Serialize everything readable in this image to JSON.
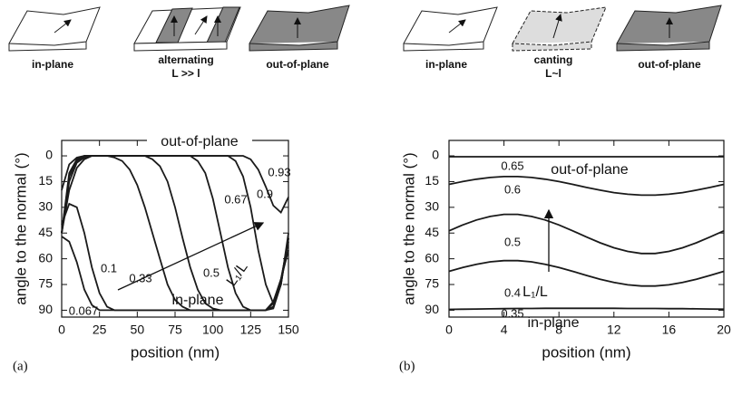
{
  "illustrations": {
    "left": [
      "in-plane",
      "alternating",
      "L >> l",
      "out-of-plane"
    ],
    "right": [
      "in-plane",
      "canting",
      "L~l",
      "out-of-plane"
    ]
  },
  "chart_data": [
    {
      "type": "line",
      "panel_label": "(a)",
      "xlabel": "position (nm)",
      "ylabel": "angle to the normal (°)",
      "color": "#1a1a1a",
      "y_inverted": true,
      "annotations": [
        "out-of-plane",
        "in-plane",
        "L₁/L"
      ],
      "xlim": [
        0,
        150
      ],
      "xticks": [
        0,
        25,
        50,
        75,
        100,
        125,
        150
      ],
      "ylim": [
        -9,
        94
      ],
      "yticks": [
        0,
        15,
        30,
        45,
        60,
        75,
        90
      ],
      "x": [
        0,
        5,
        10,
        15,
        20,
        25,
        30,
        35,
        40,
        45,
        50,
        55,
        60,
        65,
        70,
        75,
        80,
        85,
        90,
        95,
        100,
        105,
        110,
        115,
        120,
        125,
        130,
        135,
        140,
        145,
        150
      ],
      "series": [
        {
          "name": "0.067",
          "values": [
            47,
            50,
            62,
            78,
            87,
            90,
            90,
            90,
            90,
            90,
            90,
            90,
            90,
            90,
            90,
            90,
            90,
            90,
            90,
            90,
            90,
            90,
            90,
            90,
            90,
            90,
            90,
            90,
            85,
            72,
            55
          ]
        },
        {
          "name": "0.1",
          "values": [
            40,
            28,
            30,
            45,
            65,
            80,
            88,
            90,
            90,
            90,
            90,
            90,
            90,
            90,
            90,
            90,
            90,
            90,
            90,
            90,
            90,
            90,
            90,
            90,
            90,
            90,
            90,
            90,
            86,
            72,
            50
          ]
        },
        {
          "name": "0.33",
          "values": [
            45,
            20,
            7,
            2,
            0,
            0,
            0,
            1,
            3,
            8,
            17,
            30,
            45,
            60,
            75,
            84,
            88,
            90,
            90,
            90,
            90,
            90,
            90,
            90,
            90,
            90,
            90,
            90,
            88,
            75,
            48
          ]
        },
        {
          "name": "0.5",
          "values": [
            45,
            15,
            4,
            1,
            0,
            0,
            0,
            0,
            0,
            0,
            0,
            0,
            2,
            6,
            15,
            30,
            48,
            65,
            78,
            86,
            89,
            90,
            90,
            90,
            90,
            90,
            90,
            90,
            89,
            75,
            48
          ]
        },
        {
          "name": "0.67",
          "values": [
            45,
            12,
            3,
            0,
            0,
            0,
            0,
            0,
            0,
            0,
            0,
            0,
            0,
            0,
            0,
            0,
            0,
            0,
            3,
            10,
            25,
            45,
            65,
            80,
            88,
            90,
            90,
            90,
            88,
            73,
            48
          ]
        },
        {
          "name": "0.9",
          "values": [
            45,
            10,
            2,
            0,
            0,
            0,
            0,
            0,
            0,
            0,
            0,
            0,
            0,
            0,
            0,
            0,
            0,
            0,
            0,
            0,
            0,
            0,
            0,
            3,
            12,
            30,
            55,
            75,
            86,
            75,
            45
          ]
        },
        {
          "name": "0.93",
          "values": [
            20,
            5,
            1,
            0,
            0,
            0,
            0,
            0,
            0,
            0,
            0,
            0,
            0,
            0,
            0,
            0,
            0,
            0,
            0,
            0,
            0,
            0,
            0,
            0,
            0,
            2,
            8,
            18,
            29,
            33,
            24
          ]
        }
      ]
    },
    {
      "type": "line",
      "panel_label": "(b)",
      "xlabel": "position (nm)",
      "ylabel": "angle to the normal (°)",
      "color": "#1a1a1a",
      "y_inverted": true,
      "annotations": [
        "out-of-plane",
        "in-plane",
        "L₁/L"
      ],
      "xlim": [
        0,
        20
      ],
      "xticks": [
        0,
        4,
        8,
        12,
        16,
        20
      ],
      "ylim": [
        -9,
        94
      ],
      "yticks": [
        0,
        15,
        30,
        45,
        60,
        75,
        90
      ],
      "x": [
        0,
        1,
        2,
        3,
        4,
        5,
        6,
        7,
        8,
        9,
        10,
        11,
        12,
        13,
        14,
        15,
        16,
        17,
        18,
        19,
        20
      ],
      "series": [
        {
          "name": "0.65",
          "values": [
            0.5,
            0.5,
            0.5,
            0.5,
            0.5,
            0.5,
            0.5,
            0.5,
            0.5,
            0.5,
            0.5,
            0.5,
            0.5,
            0.5,
            0.5,
            0.5,
            0.5,
            0.5,
            0.5,
            0.5,
            0.5
          ]
        },
        {
          "name": "0.6",
          "values": [
            16.6,
            15.0,
            13.6,
            12.6,
            12.1,
            12.1,
            12.6,
            13.6,
            15.0,
            16.6,
            18.4,
            20.0,
            21.4,
            22.4,
            22.9,
            22.9,
            22.4,
            21.4,
            20.0,
            18.4,
            16.6
          ]
        },
        {
          "name": "0.5",
          "values": [
            43.7,
            40.3,
            37.4,
            35.3,
            34.1,
            34.1,
            35.3,
            37.4,
            40.3,
            43.7,
            47.3,
            50.7,
            53.6,
            55.7,
            56.9,
            56.9,
            55.7,
            53.6,
            50.7,
            47.3,
            43.7
          ]
        },
        {
          "name": "0.4",
          "values": [
            67.3,
            65.1,
            63.2,
            61.8,
            61.1,
            61.1,
            61.8,
            63.2,
            65.1,
            67.3,
            69.7,
            71.9,
            73.8,
            75.2,
            75.9,
            75.9,
            75.2,
            73.8,
            71.9,
            69.7,
            67.3
          ]
        },
        {
          "name": "0.35",
          "values": [
            89.5,
            89.4,
            89.3,
            89.2,
            89.1,
            89.0,
            89.0,
            88.9,
            88.9,
            88.9,
            88.9,
            88.9,
            88.9,
            89.0,
            89.0,
            89.0,
            89.1,
            89.1,
            89.2,
            89.3,
            89.4
          ]
        }
      ]
    }
  ]
}
